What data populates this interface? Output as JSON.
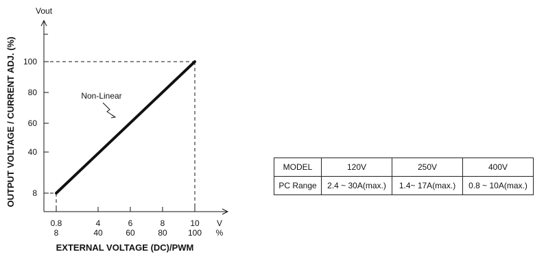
{
  "chart_data": {
    "type": "line",
    "title": "",
    "xlabel": "EXTERNAL VOLTAGE (DC)/PWM",
    "ylabel": "OUTPUT VOLTAGE / CURRENT ADJ. (%)",
    "y_unit_label": "Vout",
    "x_unit_labels": {
      "volt": "V",
      "percent": "%"
    },
    "x_ticks": [
      {
        "v": "0.8",
        "pct": "8"
      },
      {
        "v": "4",
        "pct": "40"
      },
      {
        "v": "6",
        "pct": "60"
      },
      {
        "v": "8",
        "pct": "80"
      },
      {
        "v": "10",
        "pct": "100"
      }
    ],
    "y_ticks": [
      "8",
      "40",
      "60",
      "80",
      "100"
    ],
    "series": [
      {
        "name": "",
        "x": [
          0.8,
          10
        ],
        "y": [
          8,
          100
        ]
      }
    ],
    "annotation": "Non-Linear",
    "reference_lines": "dashed lines at y=8, y=100 and x=0.8, x=10"
  },
  "table": {
    "header": [
      "MODEL",
      "120V",
      "250V",
      "400V"
    ],
    "rows": [
      [
        "PC Range",
        "2.4 ~ 30A(max.)",
        "1.4~ 17A(max.)",
        "0.8 ~ 10A(max.)"
      ]
    ]
  }
}
